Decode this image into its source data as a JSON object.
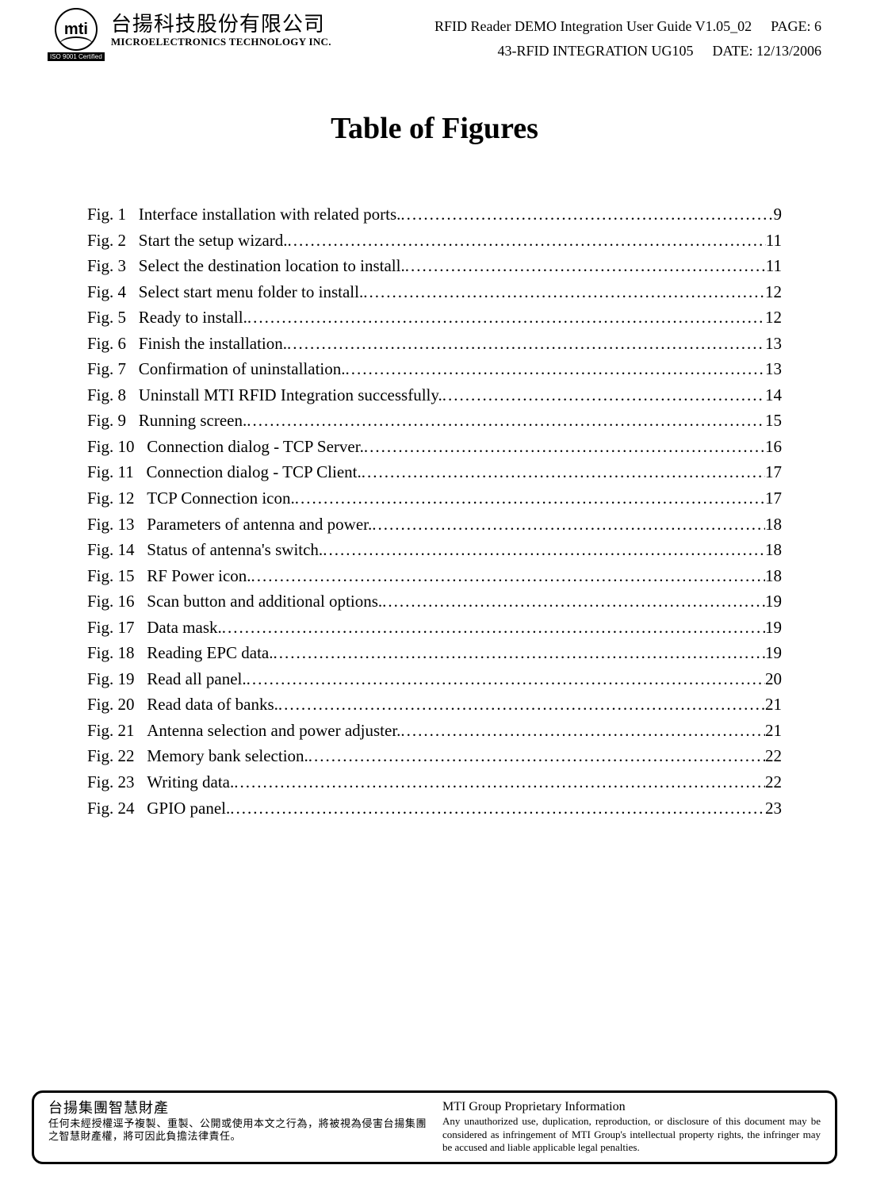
{
  "header": {
    "logo_text": "mti",
    "iso_badge": "ISO 9001 Certified",
    "company_cn": "台揚科技股份有限公司",
    "company_en": "MICROELECTRONICS TECHNOLOGY INC.",
    "doc_title": "RFID Reader DEMO Integration User Guide V1.05_02",
    "page_label": "PAGE: 6",
    "doc_code": "43-RFID INTEGRATION UG105",
    "date_label": "DATE: 12/13/2006"
  },
  "title": "Table of Figures",
  "figures": [
    {
      "label": "Fig. 1",
      "text": "Interface installation with related ports.",
      "page": "9"
    },
    {
      "label": "Fig. 2",
      "text": "Start the setup wizard.",
      "page": "11"
    },
    {
      "label": "Fig. 3",
      "text": "Select the destination location to install.",
      "page": "11"
    },
    {
      "label": "Fig. 4",
      "text": "Select start menu folder to install.",
      "page": "12"
    },
    {
      "label": "Fig. 5",
      "text": "Ready to install.",
      "page": "12"
    },
    {
      "label": "Fig. 6",
      "text": "Finish the installation.",
      "page": "13"
    },
    {
      "label": "Fig. 7",
      "text": "Confirmation of uninstallation.",
      "page": "13"
    },
    {
      "label": "Fig. 8",
      "text": "Uninstall MTI RFID Integration successfully.",
      "page": "14"
    },
    {
      "label": "Fig. 9",
      "text": "Running screen.",
      "page": "15"
    },
    {
      "label": "Fig. 10",
      "text": "Connection dialog - TCP Server.",
      "page": "16"
    },
    {
      "label": "Fig. 11",
      "text": "Connection dialog - TCP Client.",
      "page": "17"
    },
    {
      "label": "Fig. 12",
      "text": "TCP Connection icon.",
      "page": "17"
    },
    {
      "label": "Fig. 13",
      "text": "Parameters of antenna and power.",
      "page": "18"
    },
    {
      "label": "Fig. 14",
      "text": "Status of antenna's switch.",
      "page": "18"
    },
    {
      "label": "Fig. 15",
      "text": "RF Power icon.",
      "page": "18"
    },
    {
      "label": "Fig. 16",
      "text": "Scan button and additional options.",
      "page": "19"
    },
    {
      "label": "Fig. 17",
      "text": "Data mask.",
      "page": "19"
    },
    {
      "label": "Fig. 18",
      "text": "Reading EPC data.",
      "page": "19"
    },
    {
      "label": "Fig. 19",
      "text": "Read all panel.",
      "page": "20"
    },
    {
      "label": "Fig. 20",
      "text": "Read data of banks.",
      "page": "21"
    },
    {
      "label": "Fig. 21",
      "text": "Antenna selection and power adjuster.",
      "page": "21"
    },
    {
      "label": "Fig. 22",
      "text": "Memory bank selection.",
      "page": "22"
    },
    {
      "label": "Fig. 23",
      "text": "Writing data.",
      "page": "22"
    },
    {
      "label": "Fig. 24",
      "text": "GPIO panel.",
      "page": "23"
    }
  ],
  "footer": {
    "left_title": "台揚集團智慧財產",
    "left_body": "任何未經授權逕予複製、重製、公開或使用本文之行為，將被視為侵害台揚集團之智慧財產權，將可因此負擔法律責任。",
    "right_title": "MTI Group Proprietary Information",
    "right_body": "Any unauthorized use, duplication, reproduction, or disclosure of this document may be considered as infringement of MTI Group's intellectual property rights, the infringer may be accused and liable applicable legal penalties."
  }
}
